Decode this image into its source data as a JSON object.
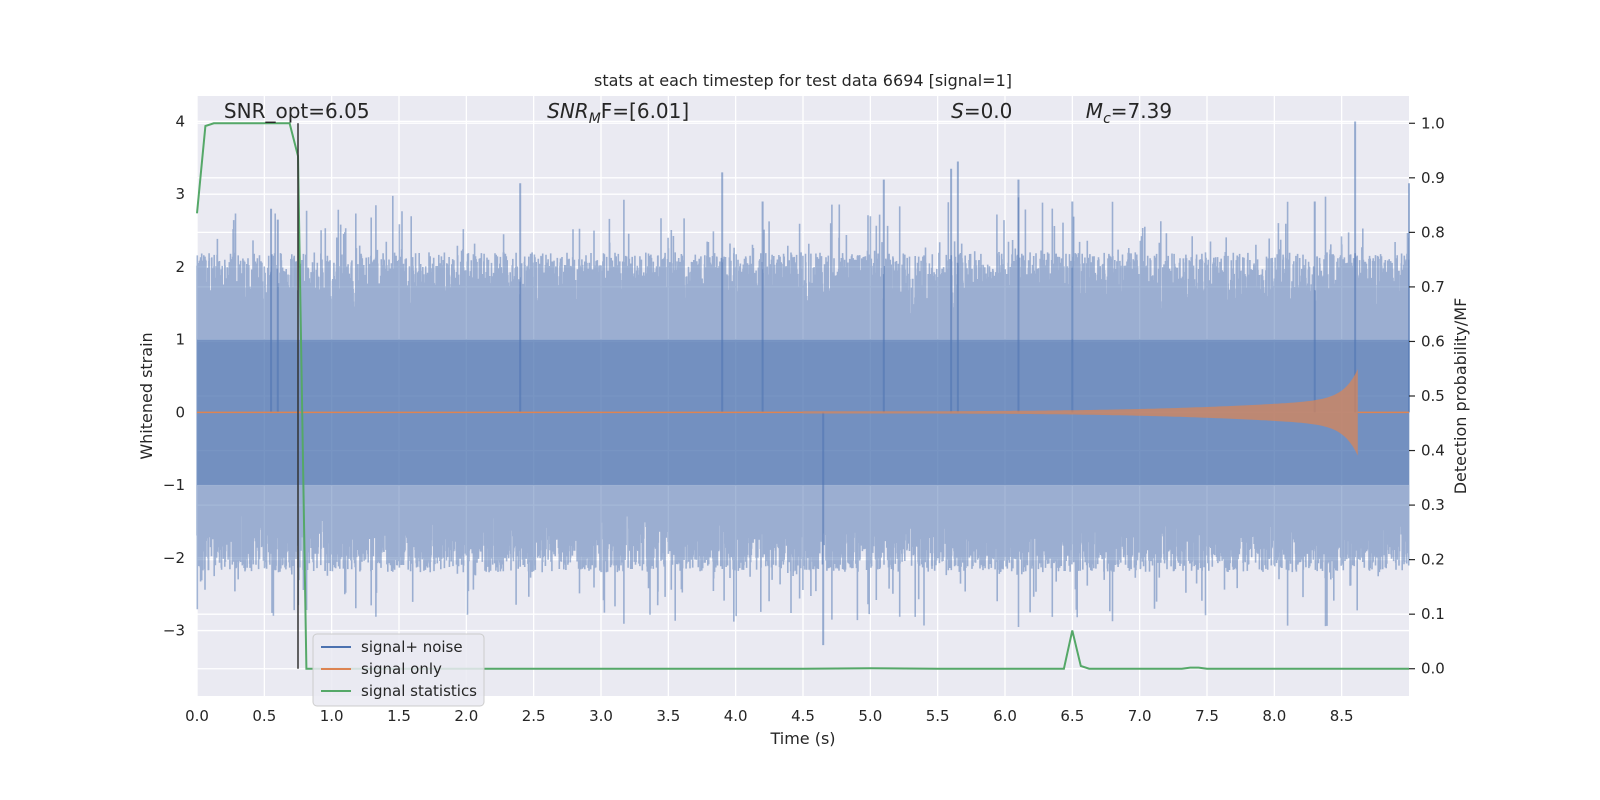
{
  "chart_data": {
    "type": "line",
    "title": "stats at each timestep for test data 6694 [signal=1]",
    "xlabel": "Time (s)",
    "ylabel": "Whitened strain",
    "ylabel_right": "Detection probability/MF",
    "xlim": [
      0.0,
      9.0
    ],
    "ylim": [
      -3.9,
      4.35
    ],
    "ylim_right": [
      -0.05,
      1.05
    ],
    "x_ticks": [
      0.0,
      0.5,
      1.0,
      1.5,
      2.0,
      2.5,
      3.0,
      3.5,
      4.0,
      4.5,
      5.0,
      5.5,
      6.0,
      6.5,
      7.0,
      7.5,
      8.0,
      8.5
    ],
    "x_tick_labels": [
      "0.0",
      "0.5",
      "1.0",
      "1.5",
      "2.0",
      "2.5",
      "3.0",
      "3.5",
      "4.0",
      "4.5",
      "5.0",
      "5.5",
      "6.0",
      "6.5",
      "7.0",
      "7.5",
      "8.0",
      "8.5"
    ],
    "y_ticks": [
      -3,
      -2,
      -1,
      0,
      1,
      2,
      3,
      4
    ],
    "y_tick_labels": [
      "−3",
      "−2",
      "−1",
      "0",
      "1",
      "2",
      "3",
      "4"
    ],
    "y_ticks_right": [
      0.0,
      0.1,
      0.2,
      0.3,
      0.4,
      0.5,
      0.6,
      0.7,
      0.8,
      0.9,
      1.0
    ],
    "y_tick_labels_right": [
      "0.0",
      "0.1",
      "0.2",
      "0.3",
      "0.4",
      "0.5",
      "0.6",
      "0.7",
      "0.8",
      "0.9",
      "1.0"
    ],
    "grid": true,
    "legend_position": "bottom-left",
    "annotations": [
      {
        "text": "SNR_opt=6.05",
        "x": 0.2,
        "y": 4.1
      },
      {
        "text_main": "SNR",
        "text_sub": "M",
        "text_tail": "F=[6.01]",
        "x": 2.6,
        "y": 4.1
      },
      {
        "text_main": "S",
        "text_tail": "=0.0",
        "x": 5.6,
        "y": 4.1
      },
      {
        "text_main": "M",
        "text_sub": "c",
        "text_tail": "=7.39",
        "x": 6.6,
        "y": 4.1
      }
    ],
    "series": [
      {
        "name": "signal+ noise",
        "color": "#4c72b0",
        "axis": "left",
        "sample_rate_hz": 2048,
        "abs_envelope_typical": 2.0,
        "peak_values": [
          [
            0.55,
            2.8
          ],
          [
            0.6,
            2.65
          ],
          [
            2.4,
            3.15
          ],
          [
            3.9,
            3.3
          ],
          [
            4.2,
            2.9
          ],
          [
            4.65,
            -3.2
          ],
          [
            5.1,
            3.2
          ],
          [
            5.6,
            3.35
          ],
          [
            5.65,
            3.45
          ],
          [
            6.1,
            3.2
          ],
          [
            6.5,
            2.9
          ],
          [
            8.3,
            2.9
          ],
          [
            8.6,
            4.0
          ],
          [
            9.0,
            3.15
          ]
        ]
      },
      {
        "name": "signal only",
        "color": "#dd8452",
        "axis": "left",
        "chirp_start": 4.5,
        "chirp_end": 8.62,
        "peak_amplitude": 0.6
      },
      {
        "name": "signal statistics",
        "color": "#55a868",
        "axis": "right",
        "x": [
          0.0,
          0.0625,
          0.125,
          0.1875,
          0.25,
          0.3125,
          0.375,
          0.4375,
          0.5,
          0.5625,
          0.625,
          0.6875,
          0.75,
          0.8125,
          0.875,
          0.9375,
          1.0,
          2.0,
          3.0,
          4.0,
          4.5,
          5.0,
          5.5,
          6.0,
          6.4375,
          6.5,
          6.5625,
          6.625,
          7.0,
          7.3125,
          7.375,
          7.4375,
          7.5,
          8.0,
          8.5,
          9.0
        ],
        "y": [
          0.835,
          0.995,
          1.0,
          1.0,
          1.0,
          1.0,
          1.0,
          1.0,
          1.0,
          1.0,
          1.0,
          1.0,
          0.94,
          0.0,
          0.0,
          0.0,
          0.0,
          0.0,
          0.0,
          0.0,
          0.0,
          0.001,
          0.0,
          0.0,
          0.0,
          0.07,
          0.005,
          0.0,
          0.0,
          0.0,
          0.002,
          0.002,
          0.0,
          0.0,
          0.0,
          0.0
        ]
      }
    ],
    "vertical_marker": {
      "x": 0.75,
      "y_from_right": 0.0,
      "y_to_right": 1.0,
      "color": "#333333"
    }
  }
}
